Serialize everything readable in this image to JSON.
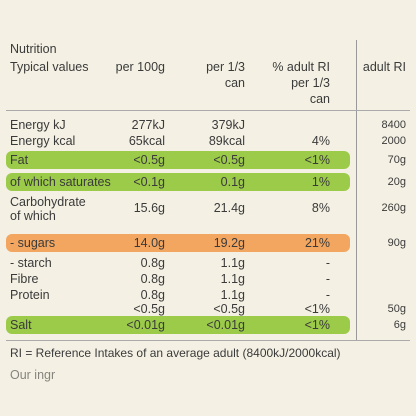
{
  "header": {
    "title": "Nutrition",
    "subtitle": "Typical values",
    "columns": [
      "per 100g",
      "per 1/3",
      "can",
      "% adult RI",
      "per 1/3",
      "can",
      "adult RI"
    ]
  },
  "rows": [
    {
      "label": "Energy kJ",
      "values": [
        "277kJ",
        "379kJ",
        null,
        "8400"
      ]
    },
    {
      "label": "Energy kcal",
      "values": [
        "65kcal",
        "89kcal",
        "4%",
        "2000"
      ]
    },
    {
      "label": "Fat",
      "values": [
        "<0.5g",
        "<0.5g",
        "<1%",
        "70g"
      ]
    },
    {
      "label": "of which saturates",
      "values": [
        "<0.1g",
        "0.1g",
        "1%",
        "20g"
      ]
    },
    {
      "label": "Carbohydrate",
      "label2": "of which",
      "values": [
        "15.6g",
        "21.4g",
        "8%",
        "260g"
      ]
    },
    {
      "label": "- sugars",
      "values": [
        "14.0g",
        "19.2g",
        "21%",
        "90g"
      ]
    },
    {
      "label": "- starch",
      "values": [
        "0.8g",
        "1.1g",
        "-",
        null
      ]
    },
    {
      "label": "Fibre",
      "values": [
        "0.8g",
        "1.1g",
        "-",
        null
      ]
    },
    {
      "label": "Protein",
      "values": [
        "0.8g",
        "1.1g",
        "-",
        null
      ]
    },
    {
      "label": null,
      "values": [
        "<0.5g",
        "<0.5g",
        "<1%",
        "50g"
      ]
    },
    {
      "label": "Salt",
      "values": [
        "<0.01g",
        "<0.01g",
        "<1%",
        "6g"
      ]
    }
  ],
  "footer": {
    "note": "RI = Reference Intakes of an average adult (8400kJ/2000kcal)",
    "cut": "Our ingr"
  }
}
